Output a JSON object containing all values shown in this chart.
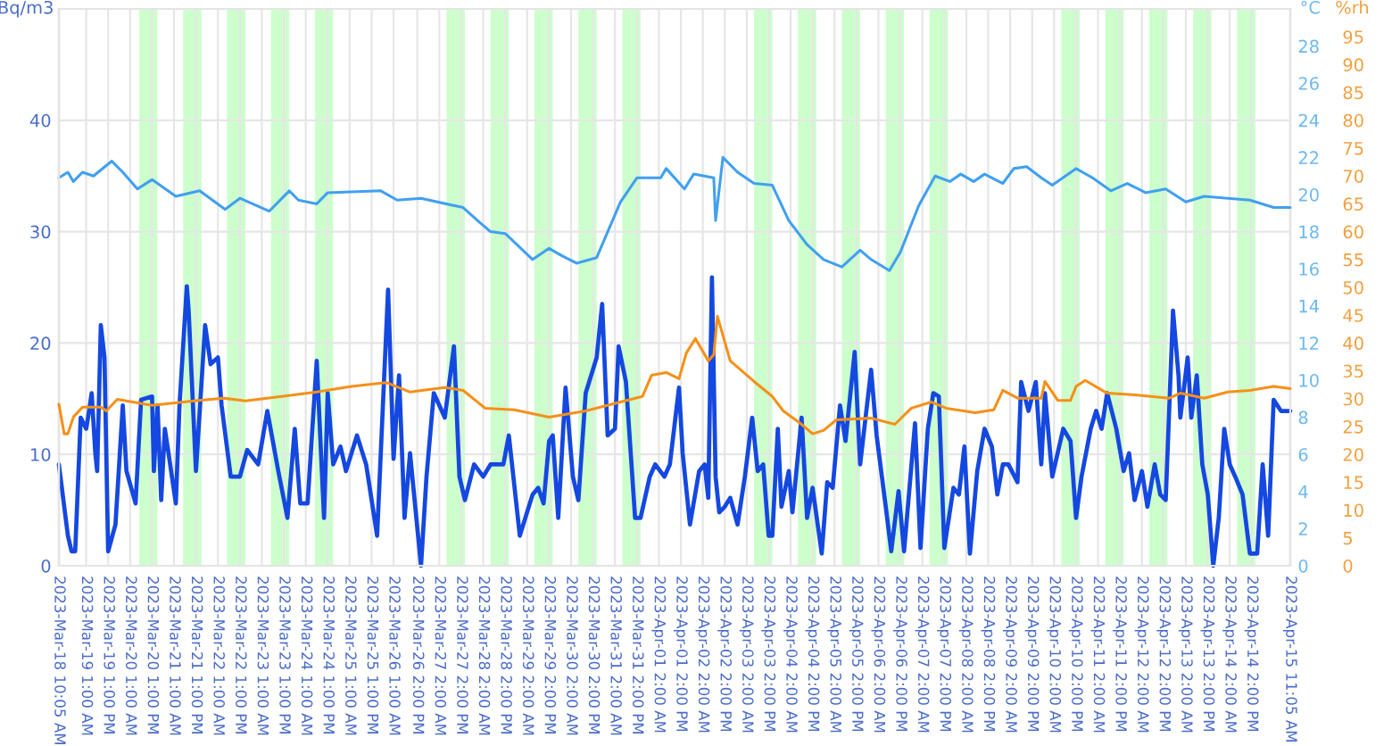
{
  "chart_data": {
    "type": "line",
    "ylabel": "Bq/m3",
    "y2label": "°C",
    "y3label": "%rh",
    "xlim": [
      "2023-03-18T10:05",
      "2023-04-15T11:05"
    ],
    "xticks": [
      {
        "value": "2023-03-18T10:05",
        "label": "2023-Mar-18 10:05 AM"
      },
      {
        "value": "2023-03-19T01:00",
        "label": "2023-Mar-19 1:00 AM"
      },
      {
        "value": "2023-03-19T13:00",
        "label": "2023-Mar-19 1:00 PM"
      },
      {
        "value": "2023-03-20T01:00",
        "label": "2023-Mar-20 1:00 AM"
      },
      {
        "value": "2023-03-20T13:00",
        "label": "2023-Mar-20 1:00 PM"
      },
      {
        "value": "2023-03-21T01:00",
        "label": "2023-Mar-21 1:00 AM"
      },
      {
        "value": "2023-03-21T13:00",
        "label": "2023-Mar-21 1:00 PM"
      },
      {
        "value": "2023-03-22T01:00",
        "label": "2023-Mar-22 1:00 AM"
      },
      {
        "value": "2023-03-22T13:00",
        "label": "2023-Mar-22 1:00 PM"
      },
      {
        "value": "2023-03-23T01:00",
        "label": "2023-Mar-23 1:00 AM"
      },
      {
        "value": "2023-03-23T13:00",
        "label": "2023-Mar-23 1:00 PM"
      },
      {
        "value": "2023-03-24T01:00",
        "label": "2023-Mar-24 1:00 AM"
      },
      {
        "value": "2023-03-24T13:00",
        "label": "2023-Mar-24 1:00 PM"
      },
      {
        "value": "2023-03-25T01:00",
        "label": "2023-Mar-25 1:00 AM"
      },
      {
        "value": "2023-03-25T13:00",
        "label": "2023-Mar-25 1:00 PM"
      },
      {
        "value": "2023-03-26T01:00",
        "label": "2023-Mar-26 1:00 AM"
      },
      {
        "value": "2023-03-26T14:00",
        "label": "2023-Mar-26 2:00 PM"
      },
      {
        "value": "2023-03-27T02:00",
        "label": "2023-Mar-27 2:00 AM"
      },
      {
        "value": "2023-03-27T14:00",
        "label": "2023-Mar-27 2:00 PM"
      },
      {
        "value": "2023-03-28T02:00",
        "label": "2023-Mar-28 2:00 AM"
      },
      {
        "value": "2023-03-28T14:00",
        "label": "2023-Mar-28 2:00 PM"
      },
      {
        "value": "2023-03-29T02:00",
        "label": "2023-Mar-29 2:00 AM"
      },
      {
        "value": "2023-03-29T14:00",
        "label": "2023-Mar-29 2:00 PM"
      },
      {
        "value": "2023-03-30T02:00",
        "label": "2023-Mar-30 2:00 AM"
      },
      {
        "value": "2023-03-30T14:00",
        "label": "2023-Mar-30 2:00 PM"
      },
      {
        "value": "2023-03-31T02:00",
        "label": "2023-Mar-31 2:00 AM"
      },
      {
        "value": "2023-03-31T14:00",
        "label": "2023-Mar-31 2:00 PM"
      },
      {
        "value": "2023-04-01T02:00",
        "label": "2023-Apr-01 2:00 AM"
      },
      {
        "value": "2023-04-01T14:00",
        "label": "2023-Apr-01 2:00 PM"
      },
      {
        "value": "2023-04-02T02:00",
        "label": "2023-Apr-02 2:00 AM"
      },
      {
        "value": "2023-04-02T14:00",
        "label": "2023-Apr-02 2:00 PM"
      },
      {
        "value": "2023-04-03T02:00",
        "label": "2023-Apr-03 2:00 AM"
      },
      {
        "value": "2023-04-03T14:00",
        "label": "2023-Apr-03 2:00 PM"
      },
      {
        "value": "2023-04-04T02:00",
        "label": "2023-Apr-04 2:00 AM"
      },
      {
        "value": "2023-04-04T14:00",
        "label": "2023-Apr-04 2:00 PM"
      },
      {
        "value": "2023-04-05T02:00",
        "label": "2023-Apr-05 2:00 AM"
      },
      {
        "value": "2023-04-05T14:00",
        "label": "2023-Apr-05 2:00 PM"
      },
      {
        "value": "2023-04-06T02:00",
        "label": "2023-Apr-06 2:00 AM"
      },
      {
        "value": "2023-04-06T14:00",
        "label": "2023-Apr-06 2:00 PM"
      },
      {
        "value": "2023-04-07T02:00",
        "label": "2023-Apr-07 2:00 AM"
      },
      {
        "value": "2023-04-07T14:00",
        "label": "2023-Apr-07 2:00 PM"
      },
      {
        "value": "2023-04-08T02:00",
        "label": "2023-Apr-08 2:00 AM"
      },
      {
        "value": "2023-04-08T14:00",
        "label": "2023-Apr-08 2:00 PM"
      },
      {
        "value": "2023-04-09T02:00",
        "label": "2023-Apr-09 2:00 AM"
      },
      {
        "value": "2023-04-09T14:00",
        "label": "2023-Apr-09 2:00 PM"
      },
      {
        "value": "2023-04-10T02:00",
        "label": "2023-Apr-10 2:00 AM"
      },
      {
        "value": "2023-04-10T14:00",
        "label": "2023-Apr-10 2:00 PM"
      },
      {
        "value": "2023-04-11T02:00",
        "label": "2023-Apr-11 2:00 AM"
      },
      {
        "value": "2023-04-11T14:00",
        "label": "2023-Apr-11 2:00 PM"
      },
      {
        "value": "2023-04-12T02:00",
        "label": "2023-Apr-12 2:00 AM"
      },
      {
        "value": "2023-04-12T14:00",
        "label": "2023-Apr-12 2:00 PM"
      },
      {
        "value": "2023-04-13T02:00",
        "label": "2023-Apr-13 2:00 AM"
      },
      {
        "value": "2023-04-13T14:00",
        "label": "2023-Apr-13 2:00 PM"
      },
      {
        "value": "2023-04-14T02:00",
        "label": "2023-Apr-14 2:00 AM"
      },
      {
        "value": "2023-04-14T14:00",
        "label": "2023-Apr-14 2:00 PM"
      },
      {
        "value": "2023-04-15T11:05",
        "label": "2023-Apr-15 11:05 AM"
      }
    ],
    "ylim": [
      0,
      50
    ],
    "yticks": [
      0,
      10,
      20,
      30,
      40
    ],
    "y2lim": [
      0,
      30
    ],
    "y2ticks": [
      0,
      2,
      4,
      6,
      8,
      10,
      12,
      14,
      16,
      18,
      20,
      22,
      24,
      26,
      28
    ],
    "y3lim": [
      0,
      100
    ],
    "y3ticks": [
      0,
      5,
      10,
      15,
      20,
      25,
      30,
      35,
      40,
      45,
      50,
      55,
      60,
      65,
      70,
      75,
      80,
      85,
      90,
      95
    ],
    "grid": true,
    "bands": [
      {
        "axis": "x",
        "from": "2023-03-20T06:00",
        "to": "2023-03-20T16:00",
        "color": "#ccffcc"
      },
      {
        "axis": "x",
        "from": "2023-03-21T06:00",
        "to": "2023-03-21T16:00",
        "color": "#ccffcc"
      },
      {
        "axis": "x",
        "from": "2023-03-22T06:00",
        "to": "2023-03-22T16:00",
        "color": "#ccffcc"
      },
      {
        "axis": "x",
        "from": "2023-03-23T06:00",
        "to": "2023-03-23T16:00",
        "color": "#ccffcc"
      },
      {
        "axis": "x",
        "from": "2023-03-24T06:00",
        "to": "2023-03-24T16:00",
        "color": "#ccffcc"
      },
      {
        "axis": "x",
        "from": "2023-03-27T06:00",
        "to": "2023-03-27T16:00",
        "color": "#ccffcc"
      },
      {
        "axis": "x",
        "from": "2023-03-28T06:00",
        "to": "2023-03-28T16:00",
        "color": "#ccffcc"
      },
      {
        "axis": "x",
        "from": "2023-03-29T06:00",
        "to": "2023-03-29T16:00",
        "color": "#ccffcc"
      },
      {
        "axis": "x",
        "from": "2023-03-30T06:00",
        "to": "2023-03-30T16:00",
        "color": "#ccffcc"
      },
      {
        "axis": "x",
        "from": "2023-03-31T06:00",
        "to": "2023-03-31T16:00",
        "color": "#ccffcc"
      },
      {
        "axis": "x",
        "from": "2023-04-03T06:00",
        "to": "2023-04-03T16:00",
        "color": "#ccffcc"
      },
      {
        "axis": "x",
        "from": "2023-04-04T06:00",
        "to": "2023-04-04T16:00",
        "color": "#ccffcc"
      },
      {
        "axis": "x",
        "from": "2023-04-05T06:00",
        "to": "2023-04-05T16:00",
        "color": "#ccffcc"
      },
      {
        "axis": "x",
        "from": "2023-04-06T06:00",
        "to": "2023-04-06T16:00",
        "color": "#ccffcc"
      },
      {
        "axis": "x",
        "from": "2023-04-07T06:00",
        "to": "2023-04-07T16:00",
        "color": "#ccffcc"
      },
      {
        "axis": "x",
        "from": "2023-04-10T06:00",
        "to": "2023-04-10T16:00",
        "color": "#ccffcc"
      },
      {
        "axis": "x",
        "from": "2023-04-11T06:00",
        "to": "2023-04-11T16:00",
        "color": "#ccffcc"
      },
      {
        "axis": "x",
        "from": "2023-04-12T06:00",
        "to": "2023-04-12T16:00",
        "color": "#ccffcc"
      },
      {
        "axis": "x",
        "from": "2023-04-13T06:00",
        "to": "2023-04-13T16:00",
        "color": "#ccffcc"
      },
      {
        "axis": "x",
        "from": "2023-04-14T06:00",
        "to": "2023-04-14T16:00",
        "color": "#ccffcc"
      }
    ],
    "series": [
      {
        "color": "#40a0f0",
        "axis": "y2",
        "x": [
          "2023-03-18T10:05",
          "2023-03-18T15:00",
          "2023-03-18T18:00",
          "2023-03-18T23:00",
          "2023-03-19T05:00",
          "2023-03-19T15:00",
          "2023-03-19T21:00",
          "2023-03-20T05:00",
          "2023-03-20T13:00",
          "2023-03-21T02:00",
          "2023-03-21T15:00",
          "2023-03-22T05:00",
          "2023-03-22T13:00",
          "2023-03-23T05:00",
          "2023-03-23T16:00",
          "2023-03-23T21:00",
          "2023-03-24T07:00",
          "2023-03-24T13:00",
          "2023-03-25T18:00",
          "2023-03-26T03:00",
          "2023-03-26T16:00",
          "2023-03-27T15:00",
          "2023-03-28T00:00",
          "2023-03-28T06:00",
          "2023-03-28T14:00",
          "2023-03-29T05:00",
          "2023-03-29T14:00",
          "2023-03-29T21:00",
          "2023-03-30T05:00",
          "2023-03-30T16:00",
          "2023-03-31T05:00",
          "2023-03-31T14:00",
          "2023-04-01T03:00",
          "2023-04-01T06:00",
          "2023-04-01T16:00",
          "2023-04-01T21:00",
          "2023-04-02T08:00",
          "2023-04-02T09:00",
          "2023-04-02T13:00",
          "2023-04-02T21:00",
          "2023-04-03T06:00",
          "2023-04-03T16:00",
          "2023-04-04T01:00",
          "2023-04-04T11:00",
          "2023-04-04T20:00",
          "2023-04-05T06:00",
          "2023-04-05T16:00",
          "2023-04-05T22:00",
          "2023-04-06T08:00",
          "2023-04-06T14:00",
          "2023-04-07T00:00",
          "2023-04-07T09:00",
          "2023-04-07T17:00",
          "2023-04-07T23:00",
          "2023-04-08T06:00",
          "2023-04-08T12:00",
          "2023-04-08T22:00",
          "2023-04-09T04:00",
          "2023-04-09T11:00",
          "2023-04-09T19:00",
          "2023-04-10T01:00",
          "2023-04-10T14:00",
          "2023-04-10T23:00",
          "2023-04-11T09:00",
          "2023-04-11T18:00",
          "2023-04-12T04:00",
          "2023-04-12T15:00",
          "2023-04-13T02:00",
          "2023-04-13T12:00",
          "2023-04-14T01:00",
          "2023-04-14T13:00",
          "2023-04-15T02:00",
          "2023-04-15T11:05"
        ],
        "values": [
          20.9,
          21.2,
          20.7,
          21.2,
          21.0,
          21.8,
          21.2,
          20.3,
          20.8,
          19.9,
          20.2,
          19.2,
          19.8,
          19.1,
          20.2,
          19.7,
          19.5,
          20.1,
          20.2,
          19.7,
          19.8,
          19.3,
          18.5,
          18.0,
          17.9,
          16.5,
          17.1,
          16.7,
          16.3,
          16.6,
          19.6,
          20.9,
          20.9,
          21.4,
          20.3,
          21.1,
          20.9,
          18.6,
          22.0,
          21.2,
          20.6,
          20.5,
          18.6,
          17.3,
          16.5,
          16.1,
          17.0,
          16.5,
          15.9,
          16.9,
          19.4,
          21.0,
          20.7,
          21.1,
          20.7,
          21.1,
          20.6,
          21.4,
          21.5,
          20.9,
          20.5,
          21.4,
          20.9,
          20.2,
          20.6,
          20.1,
          20.3,
          19.6,
          19.9,
          19.8,
          19.7,
          19.3,
          19.3
        ]
      },
      {
        "color": "#f59018",
        "axis": "y3",
        "x": [
          "2023-03-18T10:05",
          "2023-03-18T13:00",
          "2023-03-18T15:00",
          "2023-03-18T18:00",
          "2023-03-18T23:00",
          "2023-03-19T09:00",
          "2023-03-19T12:00",
          "2023-03-19T18:00",
          "2023-03-20T13:00",
          "2023-03-21T12:00",
          "2023-03-22T04:00",
          "2023-03-22T16:00",
          "2023-03-23T12:00",
          "2023-03-24T07:00",
          "2023-03-25T02:00",
          "2023-03-25T21:00",
          "2023-03-26T10:00",
          "2023-03-27T05:00",
          "2023-03-27T15:00",
          "2023-03-28T03:00",
          "2023-03-28T19:00",
          "2023-03-29T14:00",
          "2023-03-30T10:00",
          "2023-03-31T05:00",
          "2023-03-31T17:00",
          "2023-03-31T22:00",
          "2023-04-01T06:00",
          "2023-04-01T13:00",
          "2023-04-01T17:00",
          "2023-04-01T22:00",
          "2023-04-02T05:00",
          "2023-04-02T08:00",
          "2023-04-02T10:00",
          "2023-04-02T17:00",
          "2023-04-03T06:00",
          "2023-04-03T16:00",
          "2023-04-03T22:00",
          "2023-04-04T08:00",
          "2023-04-04T14:00",
          "2023-04-04T20:00",
          "2023-04-05T03:00",
          "2023-04-05T22:00",
          "2023-04-06T11:00",
          "2023-04-06T20:00",
          "2023-04-07T07:00",
          "2023-04-07T15:00",
          "2023-04-08T07:00",
          "2023-04-08T17:00",
          "2023-04-08T22:00",
          "2023-04-09T06:00",
          "2023-04-09T19:00",
          "2023-04-09T21:00",
          "2023-04-10T04:00",
          "2023-04-10T11:00",
          "2023-04-10T14:00",
          "2023-04-10T19:00",
          "2023-04-11T07:00",
          "2023-04-11T22:00",
          "2023-04-12T17:00",
          "2023-04-12T23:00",
          "2023-04-13T12:00",
          "2023-04-14T01:00",
          "2023-04-14T13:00",
          "2023-04-15T02:00",
          "2023-04-15T11:05"
        ],
        "values": [
          29.0,
          23.7,
          23.7,
          26.7,
          28.5,
          28.5,
          27.8,
          29.9,
          28.8,
          29.6,
          30.1,
          29.6,
          30.4,
          31.2,
          32.2,
          32.9,
          31.2,
          32.0,
          31.5,
          28.3,
          28.0,
          26.7,
          27.8,
          29.4,
          30.4,
          34.2,
          34.7,
          33.6,
          38.2,
          40.8,
          36.8,
          37.9,
          44.8,
          36.8,
          33.1,
          30.4,
          27.8,
          25.4,
          23.7,
          24.3,
          26.2,
          26.5,
          25.4,
          28.3,
          29.4,
          28.3,
          27.5,
          28.0,
          31.5,
          30.1,
          30.1,
          33.1,
          29.7,
          29.7,
          32.2,
          33.3,
          31.0,
          30.7,
          30.1,
          31.0,
          30.1,
          31.2,
          31.5,
          32.2,
          31.8
        ]
      },
      {
        "color": "#1448e0",
        "x": [
          "2023-03-18T10:05",
          "2023-03-18T15:00",
          "2023-03-18T17:00",
          "2023-03-18T19:00",
          "2023-03-18T22:00",
          "2023-03-19T01:00",
          "2023-03-19T02:00",
          "2023-03-19T04:00",
          "2023-03-19T06:00",
          "2023-03-19T07:00",
          "2023-03-19T09:00",
          "2023-03-19T11:00",
          "2023-03-19T13:00",
          "2023-03-19T17:00",
          "2023-03-19T21:00",
          "2023-03-19T23:00",
          "2023-03-20T04:00",
          "2023-03-20T07:00",
          "2023-03-20T13:00",
          "2023-03-20T14:00",
          "2023-03-20T16:00",
          "2023-03-20T18:00",
          "2023-03-20T20:00",
          "2023-03-20T22:00",
          "2023-03-21T02:00",
          "2023-03-21T04:00",
          "2023-03-21T08:00",
          "2023-03-21T09:00",
          "2023-03-21T13:00",
          "2023-03-21T18:00",
          "2023-03-21T21:00",
          "2023-03-22T01:00",
          "2023-03-22T03:00",
          "2023-03-22T08:00",
          "2023-03-22T13:00",
          "2023-03-22T17:00",
          "2023-03-22T23:00",
          "2023-03-23T04:00",
          "2023-03-23T10:00",
          "2023-03-23T15:00",
          "2023-03-23T19:00",
          "2023-03-23T22:00",
          "2023-03-24T02:00",
          "2023-03-24T07:00",
          "2023-03-24T11:00",
          "2023-03-24T13:00",
          "2023-03-24T16:00",
          "2023-03-24T20:00",
          "2023-03-24T23:00",
          "2023-03-25T05:00",
          "2023-03-25T10:00",
          "2023-03-25T16:00",
          "2023-03-25T22:00",
          "2023-03-26T01:00",
          "2023-03-26T04:00",
          "2023-03-26T07:00",
          "2023-03-26T10:00",
          "2023-03-26T16:00",
          "2023-03-26T19:00",
          "2023-03-26T23:00",
          "2023-03-27T05:00",
          "2023-03-27T10:00",
          "2023-03-27T13:00",
          "2023-03-27T16:00",
          "2023-03-27T21:00",
          "2023-03-28T02:00",
          "2023-03-28T06:00",
          "2023-03-28T13:00",
          "2023-03-28T16:00",
          "2023-03-28T22:00",
          "2023-03-29T05:00",
          "2023-03-29T08:00",
          "2023-03-29T11:00",
          "2023-03-29T14:00",
          "2023-03-29T16:00",
          "2023-03-29T19:00",
          "2023-03-29T23:00",
          "2023-03-30T03:00",
          "2023-03-30T06:00",
          "2023-03-30T10:00",
          "2023-03-30T16:00",
          "2023-03-30T19:00",
          "2023-03-30T22:00",
          "2023-03-31T02:00",
          "2023-03-31T04:00",
          "2023-03-31T08:00",
          "2023-03-31T13:00",
          "2023-03-31T16:00",
          "2023-03-31T21:00",
          "2023-04-01T00:00",
          "2023-04-01T05:00",
          "2023-04-01T08:00",
          "2023-04-01T13:00",
          "2023-04-01T15:00",
          "2023-04-01T19:00",
          "2023-04-02T00:00",
          "2023-04-02T03:00",
          "2023-04-02T05:00",
          "2023-04-02T07:00",
          "2023-04-02T09:00",
          "2023-04-02T11:00",
          "2023-04-02T14:00",
          "2023-04-02T17:00",
          "2023-04-02T21:00",
          "2023-04-03T01:00",
          "2023-04-03T05:00",
          "2023-04-03T08:00",
          "2023-04-03T11:00",
          "2023-04-03T14:00",
          "2023-04-03T16:00",
          "2023-04-03T19:00",
          "2023-04-03T21:00",
          "2023-04-04T01:00",
          "2023-04-04T03:00",
          "2023-04-04T08:00",
          "2023-04-04T11:00",
          "2023-04-04T14:00",
          "2023-04-04T19:00",
          "2023-04-04T22:00",
          "2023-04-05T01:00",
          "2023-04-05T05:00",
          "2023-04-05T08:00",
          "2023-04-05T13:00",
          "2023-04-05T16:00",
          "2023-04-05T22:00",
          "2023-04-06T01:00",
          "2023-04-06T06:00",
          "2023-04-06T09:00",
          "2023-04-06T13:00",
          "2023-04-06T16:00",
          "2023-04-06T22:00",
          "2023-04-07T01:00",
          "2023-04-07T05:00",
          "2023-04-07T08:00",
          "2023-04-07T11:00",
          "2023-04-07T14:00",
          "2023-04-07T19:00",
          "2023-04-07T22:00",
          "2023-04-08T01:00",
          "2023-04-08T04:00",
          "2023-04-08T08:00",
          "2023-04-08T12:00",
          "2023-04-08T16:00",
          "2023-04-08T19:00",
          "2023-04-08T22:00",
          "2023-04-09T01:00",
          "2023-04-09T06:00",
          "2023-04-09T08:00",
          "2023-04-09T12:00",
          "2023-04-09T16:00",
          "2023-04-09T19:00",
          "2023-04-09T21:00",
          "2023-04-10T01:00",
          "2023-04-10T07:00",
          "2023-04-10T11:00",
          "2023-04-10T14:00",
          "2023-04-10T17:00",
          "2023-04-10T22:00",
          "2023-04-11T01:00",
          "2023-04-11T04:00",
          "2023-04-11T07:00",
          "2023-04-11T12:00",
          "2023-04-11T16:00",
          "2023-04-11T19:00",
          "2023-04-11T22:00",
          "2023-04-12T02:00",
          "2023-04-12T05:00",
          "2023-04-12T09:00",
          "2023-04-12T12:00",
          "2023-04-12T15:00",
          "2023-04-12T19:00",
          "2023-04-12T22:00",
          "2023-04-12T23:00",
          "2023-04-13T03:00",
          "2023-04-13T05:00",
          "2023-04-13T08:00",
          "2023-04-13T11:00",
          "2023-04-13T14:00",
          "2023-04-13T17:00",
          "2023-04-13T20:00",
          "2023-04-13T23:00",
          "2023-04-14T02:00",
          "2023-04-14T05:00",
          "2023-04-14T09:00",
          "2023-04-14T13:00",
          "2023-04-14T17:00",
          "2023-04-14T20:00",
          "2023-04-14T23:00",
          "2023-04-15T02:00",
          "2023-04-15T06:00",
          "2023-04-15T11:05"
        ],
        "values": [
          9.1,
          2.7,
          1.3,
          1.3,
          13.3,
          12.3,
          13.3,
          15.5,
          10.1,
          8.5,
          21.6,
          18.7,
          1.3,
          3.7,
          14.4,
          8.5,
          5.6,
          14.9,
          15.2,
          8.5,
          14.4,
          5.9,
          12.3,
          10.1,
          5.6,
          14.4,
          25.1,
          22.9,
          8.5,
          21.6,
          18.1,
          18.7,
          14.4,
          8.0,
          8.0,
          10.4,
          9.1,
          13.9,
          8.5,
          4.3,
          12.3,
          5.6,
          5.6,
          18.4,
          4.3,
          15.5,
          9.1,
          10.7,
          8.5,
          11.7,
          9.1,
          2.7,
          24.8,
          9.6,
          17.1,
          4.3,
          10.1,
          0,
          8.0,
          15.5,
          13.3,
          19.7,
          8.0,
          5.9,
          9.1,
          8.0,
          9.1,
          9.1,
          11.7,
          2.7,
          6.4,
          7.0,
          5.6,
          11.2,
          11.7,
          4.3,
          16.0,
          8.0,
          5.9,
          15.5,
          18.7,
          23.5,
          11.7,
          12.3,
          19.7,
          16.5,
          4.3,
          4.3,
          8.0,
          9.1,
          8.0,
          9.1,
          16.0,
          10.1,
          3.7,
          8.5,
          9.1,
          6.1,
          25.9,
          8.0,
          4.8,
          5.3,
          6.1,
          3.7,
          8.0,
          13.3,
          8.5,
          9.1,
          2.7,
          2.7,
          12.3,
          5.3,
          8.5,
          4.8,
          13.3,
          4.3,
          7.0,
          1.1,
          7.5,
          7.0,
          14.4,
          11.2,
          19.2,
          9.1,
          17.6,
          11.7,
          5.3,
          1.3,
          6.7,
          1.3,
          12.8,
          1.6,
          12.3,
          15.5,
          15.2,
          1.6,
          7.0,
          6.4,
          10.7,
          1.1,
          8.5,
          12.3,
          10.7,
          6.4,
          9.1,
          9.1,
          7.5,
          16.5,
          13.9,
          16.5,
          9.1,
          15.5,
          8.0,
          12.3,
          11.2,
          4.3,
          8.0,
          12.3,
          13.9,
          12.3,
          15.5,
          12.3,
          8.5,
          10.1,
          5.9,
          8.5,
          5.3,
          9.1,
          6.4,
          5.9,
          22.9,
          17.1,
          13.3,
          18.7,
          13.3,
          17.1,
          9.1,
          6.4,
          0,
          4.3,
          12.3,
          9.1,
          8.0,
          6.4,
          1.1,
          1.1,
          9.1,
          2.7,
          14.9,
          13.9,
          13.9
        ]
      }
    ]
  }
}
